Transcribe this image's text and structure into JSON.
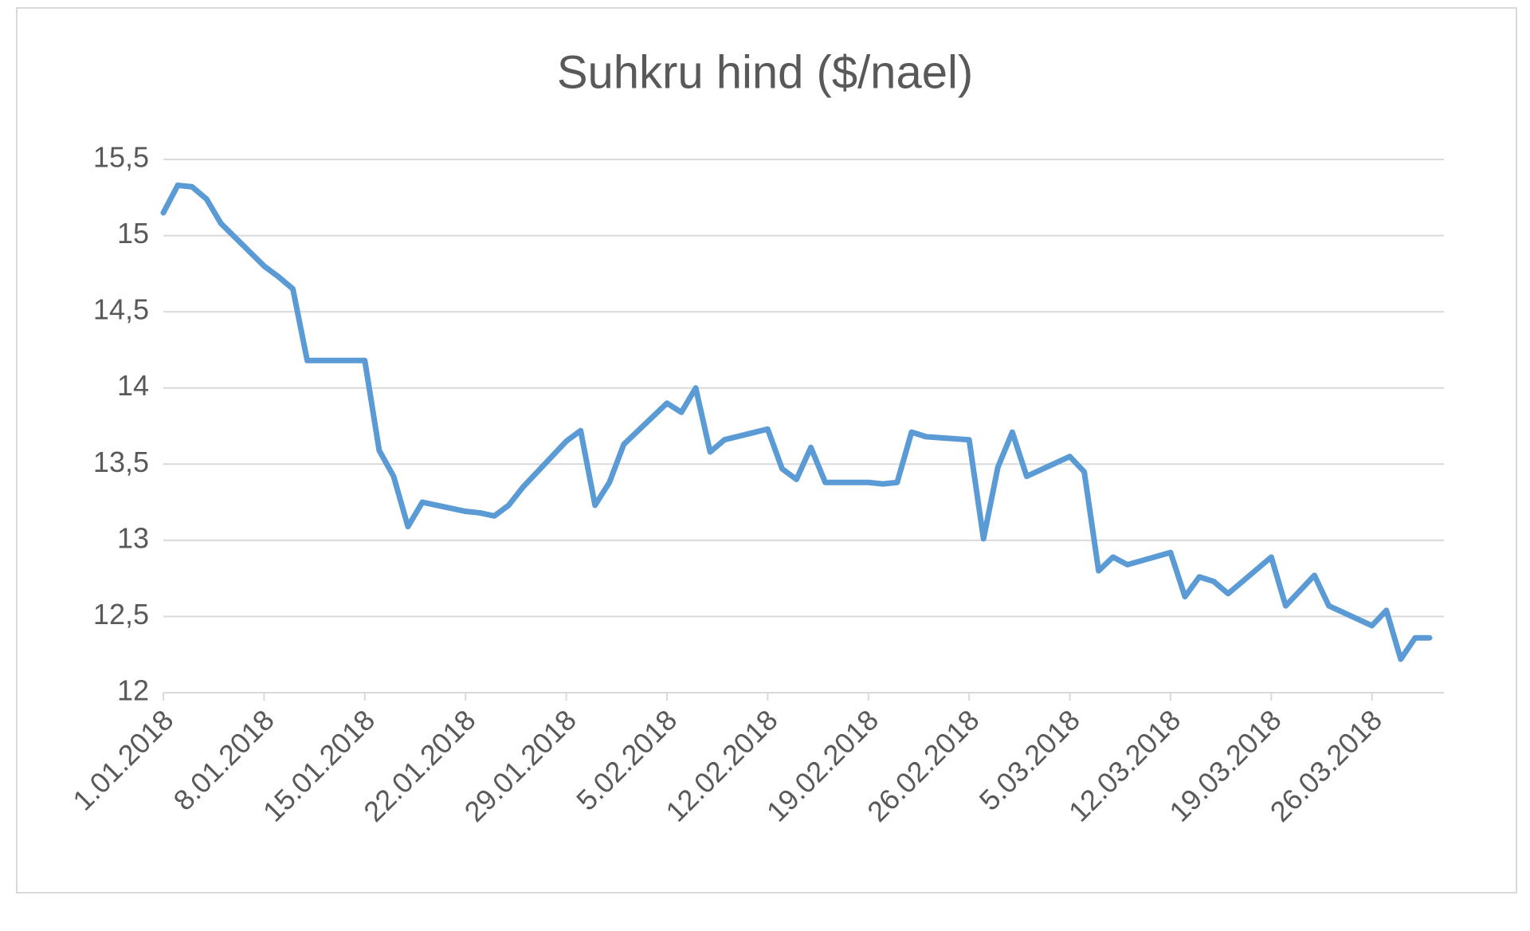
{
  "chart_data": {
    "type": "line",
    "title": "Suhkru hind ($/nael)",
    "x": [
      "1.01.2018",
      "2.01.2018",
      "3.01.2018",
      "4.01.2018",
      "5.01.2018",
      "8.01.2018",
      "9.01.2018",
      "10.01.2018",
      "11.01.2018",
      "12.01.2018",
      "15.01.2018",
      "16.01.2018",
      "17.01.2018",
      "18.01.2018",
      "19.01.2018",
      "22.01.2018",
      "23.01.2018",
      "24.01.2018",
      "25.01.2018",
      "26.01.2018",
      "29.01.2018",
      "30.01.2018",
      "31.01.2018",
      "1.02.2018",
      "2.02.2018",
      "5.02.2018",
      "6.02.2018",
      "7.02.2018",
      "8.02.2018",
      "9.02.2018",
      "12.02.2018",
      "13.02.2018",
      "14.02.2018",
      "15.02.2018",
      "16.02.2018",
      "19.02.2018",
      "20.02.2018",
      "21.02.2018",
      "22.02.2018",
      "23.02.2018",
      "26.02.2018",
      "27.02.2018",
      "28.02.2018",
      "1.03.2018",
      "2.03.2018",
      "5.03.2018",
      "6.03.2018",
      "7.03.2018",
      "8.03.2018",
      "9.03.2018",
      "12.03.2018",
      "13.03.2018",
      "14.03.2018",
      "15.03.2018",
      "16.03.2018",
      "19.03.2018",
      "20.03.2018",
      "21.03.2018",
      "22.03.2018",
      "23.03.2018",
      "26.03.2018",
      "27.03.2018",
      "28.03.2018",
      "29.03.2018",
      "30.03.2018"
    ],
    "series": [
      {
        "color": "#5b9bd5",
        "values": [
          15.15,
          15.33,
          15.32,
          15.24,
          15.08,
          14.8,
          14.73,
          14.65,
          14.18,
          14.18,
          14.18,
          13.59,
          13.42,
          13.09,
          13.25,
          13.19,
          13.18,
          13.16,
          13.23,
          13.35,
          13.65,
          13.72,
          13.23,
          13.38,
          13.63,
          13.9,
          13.84,
          14.0,
          13.58,
          13.66,
          13.73,
          13.47,
          13.4,
          13.61,
          13.38,
          13.38,
          13.37,
          13.38,
          13.71,
          13.68,
          13.66,
          13.01,
          13.48,
          13.71,
          13.42,
          13.55,
          13.45,
          12.8,
          12.89,
          12.84,
          12.92,
          12.63,
          12.76,
          12.73,
          12.65,
          12.89,
          12.57,
          12.67,
          12.77,
          12.57,
          12.44,
          12.54,
          12.22,
          12.36,
          12.36
        ]
      }
    ],
    "xlim": [
      "1.01.2018",
      "31.03.2018"
    ],
    "xticks": [
      "1.01.2018",
      "8.01.2018",
      "15.01.2018",
      "22.01.2018",
      "29.01.2018",
      "5.02.2018",
      "12.02.2018",
      "19.02.2018",
      "26.02.2018",
      "5.03.2018",
      "12.03.2018",
      "19.03.2018",
      "26.03.2018"
    ],
    "ylim": [
      12,
      15.5
    ],
    "yticks": [
      12,
      {
        "value": 12.5,
        "label": "12,5"
      },
      13,
      {
        "value": 13.5,
        "label": "13,5"
      },
      14,
      {
        "value": 14.5,
        "label": "14,5"
      },
      15,
      {
        "value": 15.5,
        "label": "15,5"
      }
    ],
    "grid": true
  }
}
